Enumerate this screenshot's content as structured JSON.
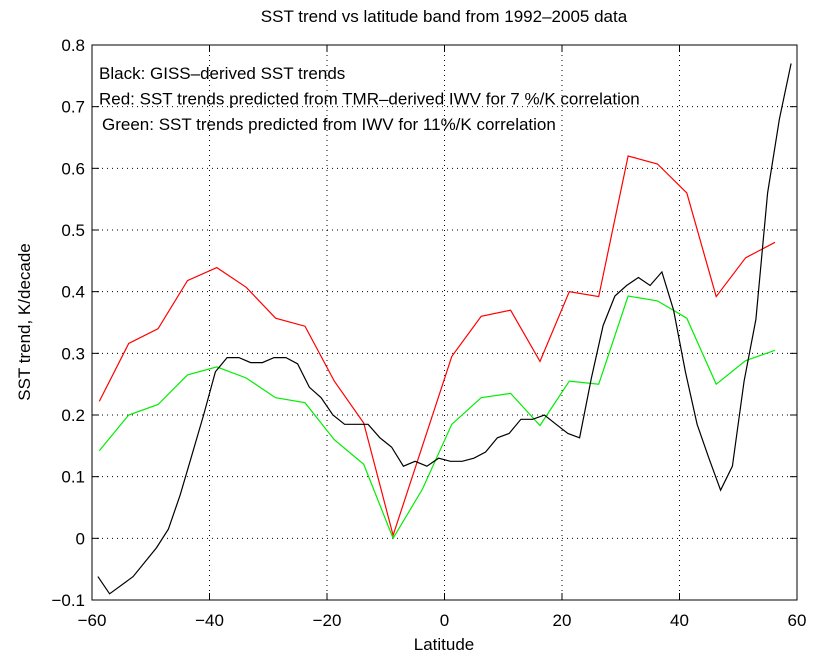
{
  "chart_data": {
    "type": "line",
    "title": "SST trend vs latitude band from 1992–2005 data",
    "xlabel": "Latitude",
    "ylabel": "SST trend, K/decade",
    "annotations": [
      "Black: GISS–derived SST trends",
      "Red: SST trends predicted from TMR–derived IWV for  7 %/K correlation",
      "Green: SST trends predicted from IWV for 11%/K correlation"
    ],
    "xlim": [
      -60,
      60
    ],
    "ylim": [
      -0.1,
      0.8
    ],
    "xticks": [
      {
        "value": -60,
        "label": "−60"
      },
      {
        "value": -40,
        "label": "−40"
      },
      {
        "value": -20,
        "label": "−20"
      },
      0,
      20,
      40,
      60
    ],
    "yticks": [
      {
        "value": -0.1,
        "label": "−0.1"
      },
      0,
      0.1,
      0.2,
      0.3,
      0.4,
      0.5,
      0.6,
      0.7,
      0.8
    ],
    "grid": true,
    "series": [
      {
        "color": "#ff0000",
        "x": [
          -58.75,
          -53.75,
          -48.75,
          -43.75,
          -38.75,
          -33.75,
          -28.75,
          -23.75,
          -18.75,
          -13.75,
          -8.75,
          1.25,
          6.25,
          11.25,
          16.25,
          21.25,
          26.25,
          31.25,
          36.25,
          41.25,
          46.25,
          51.25,
          56.25
        ],
        "values": [
          0.222,
          0.316,
          0.34,
          0.418,
          0.439,
          0.407,
          0.357,
          0.344,
          0.255,
          0.187,
          0.005,
          0.295,
          0.36,
          0.37,
          0.287,
          0.4,
          0.392,
          0.62,
          0.607,
          0.56,
          0.392,
          0.455,
          0.48
        ]
      },
      {
        "color": "#00ee00",
        "x": [
          -58.75,
          -53.75,
          -48.75,
          -43.75,
          -38.75,
          -33.75,
          -28.75,
          -23.75,
          -18.75,
          -13.75,
          -8.75,
          -3.75,
          1.25,
          6.25,
          11.25,
          16.25,
          21.25,
          26.25,
          31.25,
          36.25,
          41.25,
          46.25,
          51.25,
          56.25
        ],
        "values": [
          0.142,
          0.2,
          0.217,
          0.265,
          0.278,
          0.26,
          0.228,
          0.22,
          0.16,
          0.12,
          0.0,
          0.08,
          0.185,
          0.228,
          0.235,
          0.183,
          0.255,
          0.25,
          0.393,
          0.385,
          0.357,
          0.25,
          0.288,
          0.305
        ]
      },
      {
        "color": "#000000",
        "x": [
          -59,
          -57,
          -53,
          -49,
          -47,
          -45,
          -43,
          -41,
          -39,
          -37,
          -35,
          -33,
          -31,
          -29,
          -27,
          -25,
          -23,
          -21,
          -19,
          -17,
          -15,
          -13,
          -11,
          -9,
          -7,
          -5,
          -3,
          -1,
          1,
          3,
          5,
          7,
          9,
          11,
          13,
          15,
          17,
          19,
          21,
          23,
          25,
          27,
          29,
          31,
          33,
          35,
          37,
          39,
          41,
          43,
          45,
          47,
          49,
          51,
          53,
          55,
          57,
          59
        ],
        "values": [
          -0.062,
          -0.09,
          -0.062,
          -0.015,
          0.015,
          0.07,
          0.135,
          0.2,
          0.27,
          0.293,
          0.293,
          0.285,
          0.285,
          0.293,
          0.293,
          0.283,
          0.245,
          0.228,
          0.2,
          0.185,
          0.185,
          0.185,
          0.163,
          0.148,
          0.117,
          0.125,
          0.117,
          0.13,
          0.125,
          0.125,
          0.13,
          0.14,
          0.163,
          0.17,
          0.193,
          0.193,
          0.2,
          0.185,
          0.17,
          0.163,
          0.26,
          0.345,
          0.393,
          0.41,
          0.423,
          0.41,
          0.432,
          0.37,
          0.27,
          0.185,
          0.13,
          0.078,
          0.117,
          0.255,
          0.355,
          0.56,
          0.68,
          0.77
        ]
      }
    ]
  }
}
